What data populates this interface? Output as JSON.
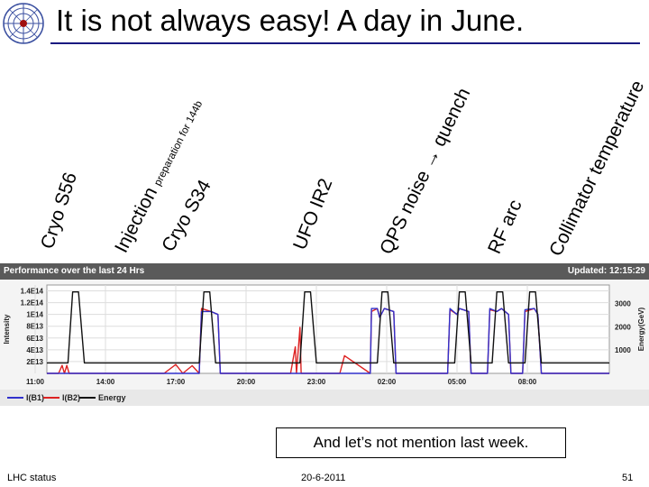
{
  "slide": {
    "title": "It is not always easy!  A day in June.",
    "footer_left": "LHC status",
    "footer_center": "20-6-2011",
    "footer_right": "51",
    "note": "And let’s not mention last week."
  },
  "annotations": [
    {
      "label": "Cryo S56"
    },
    {
      "label": "Injection",
      "suffix": "preparation for 144b"
    },
    {
      "label": "Cryo S34"
    },
    {
      "label": "UFO IR2"
    },
    {
      "label": "QPS noise → quench"
    },
    {
      "label": "RF arc"
    },
    {
      "label": "Collimator temperature"
    }
  ],
  "panel": {
    "header_left": "Performance over the last 24 Hrs",
    "header_right": "Updated: 12:15:29"
  },
  "chart_data": {
    "type": "line",
    "title": "Performance over the last 24 Hrs",
    "ylabel_left": "Intensity",
    "ylabel_right": "Energy(GeV)",
    "y_left_ticks": [
      "1.4E14",
      "1.2E14",
      "1E14",
      "8E13",
      "6E13",
      "4E13",
      "2E13"
    ],
    "y_left_range": [
      0,
      150000000000000.0
    ],
    "y_right_ticks": [
      1000,
      2000,
      3000
    ],
    "y_right_range": [
      0,
      3800
    ],
    "x_ticks": [
      "14:00",
      "17:00",
      "20:00",
      "23:00",
      "02:00",
      "05:00",
      "08:00",
      "11:00"
    ],
    "x_range_hours": [
      11.5,
      35.5
    ],
    "legend": [
      {
        "name": "I(B1)",
        "color": "#3030cc"
      },
      {
        "name": "I(B2)",
        "color": "#dd2222"
      },
      {
        "name": "Energy",
        "color": "#111111"
      }
    ],
    "series": [
      {
        "name": "Energy",
        "color": "#111111",
        "x": [
          11.5,
          12.4,
          12.6,
          12.85,
          13.1,
          18.0,
          18.2,
          18.45,
          18.7,
          22.3,
          22.5,
          22.75,
          23.0,
          25.6,
          25.8,
          26.05,
          26.3,
          28.9,
          29.1,
          29.35,
          29.6,
          30.5,
          30.7,
          30.95,
          31.2,
          31.9,
          32.1,
          32.35,
          32.6,
          35.5
        ],
        "y": [
          450,
          450,
          3500,
          3500,
          450,
          450,
          3500,
          3500,
          450,
          450,
          3500,
          3500,
          450,
          450,
          3500,
          3500,
          450,
          450,
          3500,
          3500,
          450,
          450,
          3500,
          3500,
          450,
          450,
          3500,
          3500,
          450,
          450
        ]
      },
      {
        "name": "I(B1)",
        "color": "#3030cc",
        "x": [
          11.5,
          18.0,
          18.1,
          18.5,
          18.8,
          18.9,
          25.3,
          25.35,
          25.6,
          25.7,
          25.9,
          26.3,
          26.4,
          28.6,
          28.7,
          29.0,
          29.1,
          29.5,
          29.6,
          30.3,
          30.4,
          30.7,
          30.9,
          31.2,
          31.3,
          31.8,
          31.9,
          32.3,
          32.45,
          32.6,
          35.5
        ],
        "y": [
          0,
          0,
          105000000000000.0,
          105000000000000.0,
          100000000000000.0,
          0,
          0,
          110000000000000.0,
          110000000000000.0,
          95000000000000.0,
          110000000000000.0,
          105000000000000.0,
          0,
          0,
          110000000000000.0,
          100000000000000.0,
          110000000000000.0,
          105000000000000.0,
          0,
          0,
          110000000000000.0,
          105000000000000.0,
          110000000000000.0,
          100000000000000.0,
          0,
          0,
          108000000000000.0,
          110000000000000.0,
          100000000000000.0,
          0,
          0
        ]
      },
      {
        "name": "I(B2)",
        "color": "#dd2222",
        "x": [
          11.5,
          12.0,
          12.15,
          12.25,
          12.35,
          12.45,
          16.5,
          17.0,
          17.3,
          17.7,
          18.0,
          18.1,
          18.5,
          18.8,
          18.9,
          21.9,
          22.1,
          22.15,
          22.3,
          22.35,
          24.0,
          24.2,
          25.3,
          25.35,
          25.6,
          25.7,
          25.9,
          26.3,
          26.4,
          28.6,
          28.7,
          29.0,
          29.1,
          29.5,
          29.6,
          30.3,
          30.4,
          30.7,
          30.9,
          31.2,
          31.3,
          31.8,
          31.9,
          32.3,
          32.45,
          32.6,
          35.5
        ],
        "y": [
          0,
          0,
          13500000000000.0,
          0,
          13500000000000.0,
          0,
          0,
          15000000000000.0,
          0,
          13000000000000.0,
          0,
          110000000000000.0,
          105000000000000.0,
          100000000000000.0,
          0,
          0,
          45000000000000.0,
          0,
          78000000000000.0,
          0,
          0,
          30000000000000.0,
          0,
          105000000000000.0,
          110000000000000.0,
          95000000000000.0,
          110000000000000.0,
          105000000000000.0,
          0,
          0,
          108000000000000.0,
          100000000000000.0,
          110000000000000.0,
          105000000000000.0,
          0,
          0,
          108000000000000.0,
          105000000000000.0,
          110000000000000.0,
          100000000000000.0,
          0,
          0,
          105000000000000.0,
          110000000000000.0,
          100000000000000.0,
          0,
          0
        ]
      }
    ]
  }
}
